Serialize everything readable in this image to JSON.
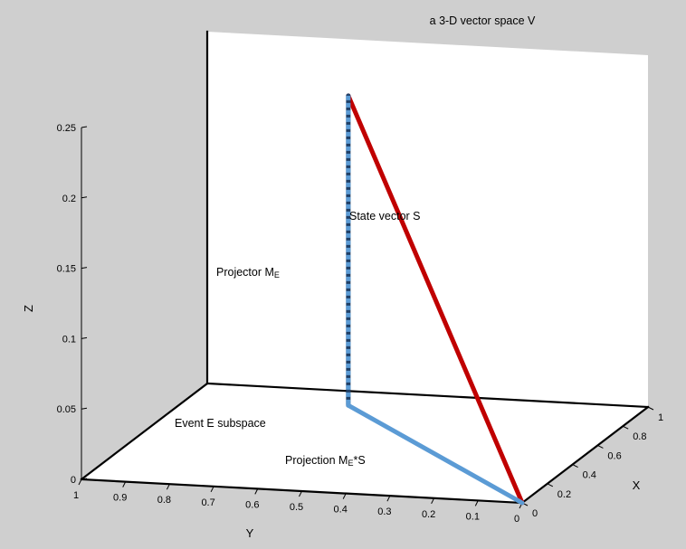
{
  "chart_data": {
    "type": "line",
    "title": "a 3-D vector space V",
    "xlabel": "X",
    "ylabel": "Y",
    "zlabel": "Z",
    "xlim": [
      0,
      1
    ],
    "ylim": [
      0,
      1
    ],
    "zlim": [
      0,
      0.25
    ],
    "x_ticks": [
      "0",
      "0.2",
      "0.4",
      "0.6",
      "0.8",
      "1"
    ],
    "y_ticks": [
      "1",
      "0.9",
      "0.8",
      "0.7",
      "0.6",
      "0.5",
      "0.4",
      "0.3",
      "0.2",
      "0.1",
      "0"
    ],
    "z_ticks": [
      "0",
      "0.05",
      "0.1",
      "0.15",
      "0.2",
      "0.25"
    ],
    "series": [
      {
        "name": "State vector S",
        "color": "#c00000",
        "style": "solid",
        "points": [
          [
            0,
            0,
            0
          ],
          [
            0.86,
            0.64,
            0.22
          ]
        ]
      },
      {
        "name": "Projector M_E",
        "color": "#5b9bd5",
        "style": "dashed",
        "points": [
          [
            0.86,
            0.64,
            0.22
          ],
          [
            0.86,
            0.64,
            0.0
          ]
        ]
      },
      {
        "name": "Projection M_E*S",
        "color": "#5b9bd5",
        "style": "solid",
        "points": [
          [
            0,
            0,
            0
          ],
          [
            0.86,
            0.64,
            0.0
          ]
        ]
      }
    ],
    "annotations": {
      "state_vector": "State vector S",
      "projector_main": "Projector M",
      "projector_sub": "E",
      "event_subspace": "Event E subspace",
      "projection_main": "Projection M",
      "projection_sub": "E",
      "projection_tail": "*S"
    }
  }
}
